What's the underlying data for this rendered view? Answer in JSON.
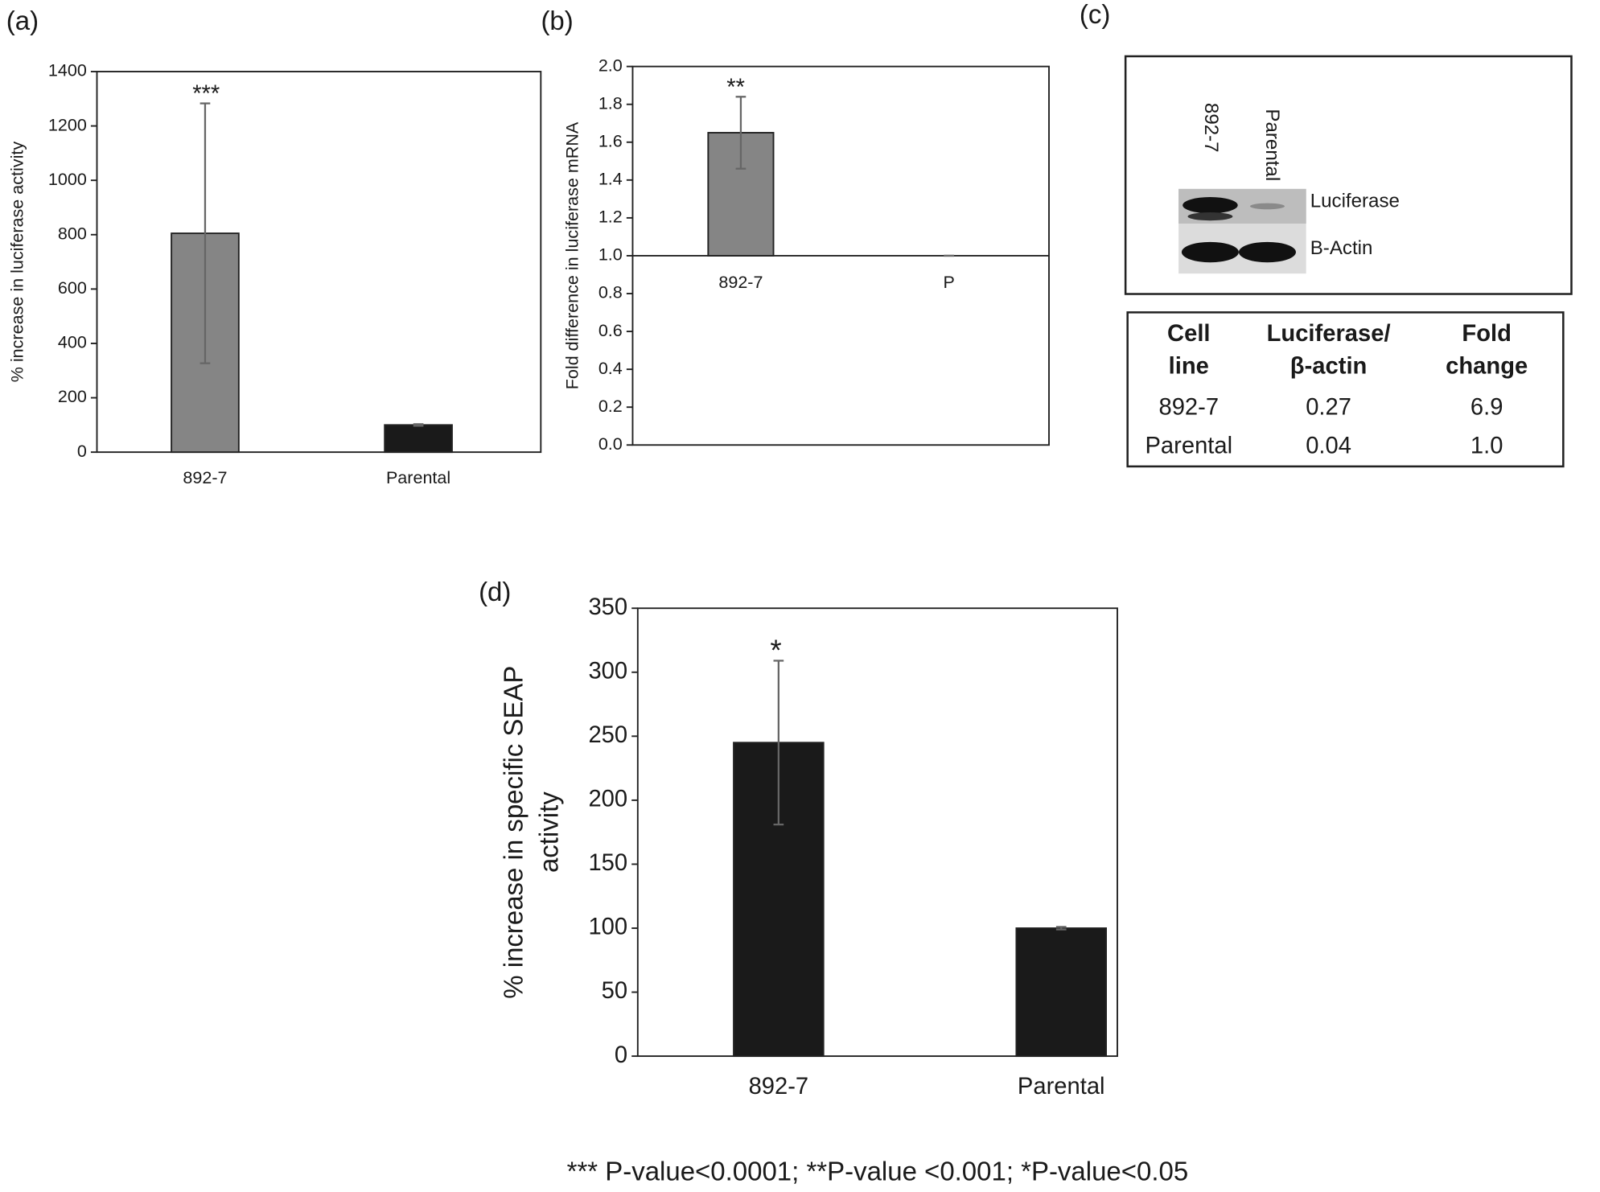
{
  "chart_data": [
    {
      "type": "bar",
      "label": "(a)",
      "ylabel": "% increase in luciferase activity",
      "categories": [
        "892-7",
        "Parental"
      ],
      "values": [
        805,
        100
      ],
      "errors": [
        478,
        3
      ],
      "colors": [
        "#858585",
        "#1a1a1a"
      ],
      "annotations": [
        "***",
        null
      ],
      "ylim": [
        0,
        1400
      ],
      "yticks": [
        0,
        200,
        400,
        600,
        800,
        1000,
        1200,
        1400
      ]
    },
    {
      "type": "bar",
      "label": "(b)",
      "ylabel": "Fold difference in luciferase mRNA",
      "categories": [
        "892-7",
        "P"
      ],
      "values": [
        1.65,
        1.0
      ],
      "errors": [
        0.19,
        0
      ],
      "colors": [
        "#858585",
        "#1a1a1a"
      ],
      "annotations": [
        "**",
        null
      ],
      "baseline": 1.0,
      "ylim": [
        0,
        2
      ],
      "yticks": [
        {
          "value": 0,
          "label": "0.0"
        },
        {
          "value": 0.2,
          "label": "0.2"
        },
        {
          "value": 0.4,
          "label": "0.4"
        },
        {
          "value": 0.6,
          "label": "0.6"
        },
        {
          "value": 0.8,
          "label": "0.8"
        },
        {
          "value": 1,
          "label": "1.0"
        },
        {
          "value": 1.2,
          "label": "1.2"
        },
        {
          "value": 1.4,
          "label": "1.4"
        },
        {
          "value": 1.6,
          "label": "1.6"
        },
        {
          "value": 1.8,
          "label": "1.8"
        },
        {
          "value": 2,
          "label": "2.0"
        }
      ]
    },
    {
      "type": "bar",
      "label": "(d)",
      "ylabel_lines": [
        "% increase in specific SEAP",
        "activity"
      ],
      "categories": [
        "892-7",
        "Parental"
      ],
      "values": [
        245,
        100
      ],
      "errors": [
        64,
        1
      ],
      "colors": [
        "#1a1a1a",
        "#1a1a1a"
      ],
      "annotations": [
        "*",
        null
      ],
      "ylim": [
        0,
        350
      ],
      "yticks": [
        0,
        50,
        100,
        150,
        200,
        250,
        300,
        350
      ]
    }
  ],
  "panel_c": {
    "label": "(c)",
    "blot": {
      "lanes": [
        "892-7",
        "Parental"
      ],
      "bands": [
        "Luciferase",
        "B-Actin"
      ]
    },
    "table": {
      "header": [
        [
          "Cell",
          "line"
        ],
        [
          "Luciferase/",
          "β-actin"
        ],
        [
          "Fold",
          "change"
        ]
      ],
      "rows": [
        [
          "892-7",
          "0.27",
          "6.9"
        ],
        [
          "Parental",
          "0.04",
          "1.0"
        ]
      ]
    }
  },
  "footnote": "*** P-value<0.0001; **P-value <0.001; *P-value<0.05"
}
